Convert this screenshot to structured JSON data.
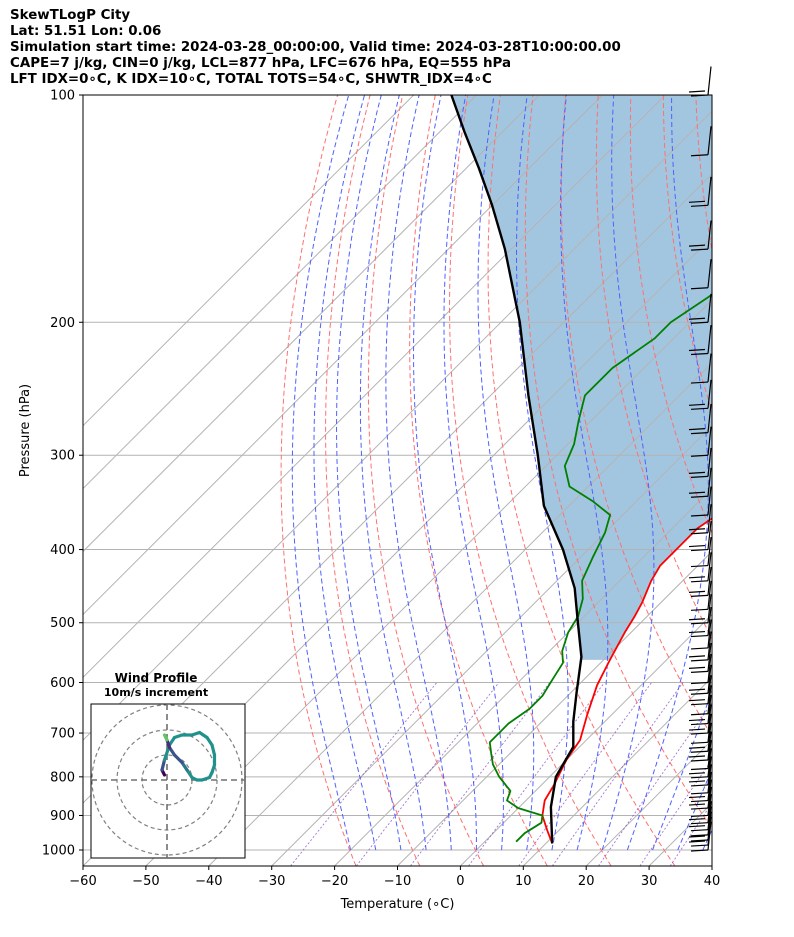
{
  "header": {
    "title": "SkewTLogP City",
    "location": "Lat: 51.51   Lon: 0.06",
    "times": "Simulation start time: 2024-03-28_00:00:00, Valid time: 2024-03-28T10:00:00.00",
    "indices_1": "CAPE=7 j/kg, CIN=0 j/kg, LCL=877 hPa, LFC=676 hPa, EQ=555 hPa",
    "indices_2": "LFT IDX=0∘C, K IDX=10∘C, TOTAL TOTS=54∘C, SHWTR_IDX=4∘C"
  },
  "chart_data": {
    "type": "line",
    "xlabel": "Temperature (∘C)",
    "ylabel": "Pressure (hPa)",
    "xlim": [
      -60,
      40
    ],
    "ylim": [
      1050,
      100
    ],
    "y_scale": "log",
    "x_ticks": [
      -60,
      -50,
      -40,
      -30,
      -20,
      -10,
      0,
      10,
      20,
      30,
      40
    ],
    "x_tick_labels": [
      "−60",
      "−50",
      "−40",
      "−30",
      "−20",
      "−10",
      "0",
      "10",
      "20",
      "30",
      "40"
    ],
    "y_ticks": [
      1000,
      900,
      800,
      700,
      600,
      500,
      400,
      300,
      200,
      100
    ],
    "y_tick_labels": [
      "1000",
      "900",
      "800",
      "700",
      "600",
      "500",
      "400",
      "300",
      "200",
      "100"
    ],
    "skew": "isotherms tilted 45°",
    "series": [
      {
        "key": "temperature",
        "color": "#ff0000",
        "points": [
          [
            11,
            980
          ],
          [
            8,
            940
          ],
          [
            5,
            900
          ],
          [
            3,
            860
          ],
          [
            2,
            820
          ],
          [
            0,
            760
          ],
          [
            -1,
            715
          ],
          [
            -4,
            660
          ],
          [
            -7,
            605
          ],
          [
            -9,
            560
          ],
          [
            -11,
            515
          ],
          [
            -12,
            490
          ],
          [
            -13,
            470
          ],
          [
            -15,
            440
          ],
          [
            -16,
            420
          ],
          [
            -16,
            400
          ],
          [
            -16,
            375
          ],
          [
            -15,
            360
          ],
          [
            -13,
            345
          ],
          [
            -10,
            330
          ],
          [
            -6,
            310
          ],
          [
            -3,
            290
          ],
          [
            1,
            270
          ],
          [
            5,
            250
          ],
          [
            8,
            230
          ],
          [
            10,
            205
          ],
          [
            11,
            185
          ],
          [
            14,
            170
          ],
          [
            17,
            150
          ],
          [
            18,
            135
          ],
          [
            19,
            125
          ],
          [
            20,
            110
          ],
          [
            21,
            100
          ]
        ]
      },
      {
        "key": "dewpoint",
        "color": "#008000",
        "points": [
          [
            5,
            975
          ],
          [
            5,
            950
          ],
          [
            6,
            920
          ],
          [
            5,
            900
          ],
          [
            0,
            880
          ],
          [
            -3,
            860
          ],
          [
            -4,
            835
          ],
          [
            -8,
            800
          ],
          [
            -11,
            770
          ],
          [
            -13,
            745
          ],
          [
            -15,
            720
          ],
          [
            -15,
            700
          ],
          [
            -15,
            680
          ],
          [
            -14,
            650
          ],
          [
            -14,
            625
          ],
          [
            -15,
            595
          ],
          [
            -16,
            565
          ],
          [
            -18,
            545
          ],
          [
            -20,
            515
          ],
          [
            -21,
            490
          ],
          [
            -23,
            465
          ],
          [
            -26,
            440
          ],
          [
            -28,
            410
          ],
          [
            -30,
            380
          ],
          [
            -32,
            360
          ],
          [
            -37,
            345
          ],
          [
            -43,
            330
          ],
          [
            -47,
            310
          ],
          [
            -49,
            290
          ],
          [
            -52,
            270
          ],
          [
            -55,
            250
          ],
          [
            -55,
            230
          ],
          [
            -53,
            210
          ],
          [
            -53,
            200
          ],
          [
            -51,
            185
          ],
          [
            -48,
            170
          ],
          [
            -44,
            150
          ],
          [
            -41,
            135
          ],
          [
            -38,
            120
          ],
          [
            -34,
            108
          ],
          [
            -32,
            100
          ]
        ]
      },
      {
        "key": "parcel",
        "color": "#000000",
        "points": [
          [
            11,
            980
          ],
          [
            5,
            877
          ],
          [
            1,
            800
          ],
          [
            -1,
            730
          ],
          [
            -5,
            676
          ],
          [
            -9,
            620
          ],
          [
            -14,
            555
          ],
          [
            -20,
            500
          ],
          [
            -26,
            450
          ],
          [
            -34,
            400
          ],
          [
            -44,
            350
          ],
          [
            -53,
            300
          ],
          [
            -64,
            250
          ],
          [
            -77,
            200
          ],
          [
            -91,
            160
          ],
          [
            -100,
            140
          ],
          [
            -108,
            125
          ],
          [
            -116,
            112
          ],
          [
            -124,
            100
          ]
        ]
      }
    ],
    "dry_adiabats_theta_K": [
      253,
      263,
      273,
      283,
      293,
      303,
      313,
      323,
      333,
      343,
      353,
      363,
      373,
      383,
      393,
      403,
      413,
      423,
      433,
      443,
      453
    ],
    "moist_adiabats_start_C": [
      -20,
      -16,
      -12,
      -8,
      -4,
      0,
      4,
      8,
      12,
      16,
      20,
      24,
      28,
      32,
      36
    ],
    "isotherms_C": [
      -130,
      -120,
      -110,
      -100,
      -90,
      -80,
      -70,
      -60,
      -50,
      -40,
      -30,
      -20,
      -10,
      0,
      10,
      20,
      30,
      40
    ],
    "mixing_ratio_g_per_kg": [
      0.4,
      1,
      2,
      4,
      7,
      10,
      16,
      24,
      32
    ],
    "wind_barbs": {
      "pressures": [
        1000,
        985,
        970,
        955,
        940,
        920,
        900,
        880,
        860,
        840,
        820,
        800,
        780,
        760,
        740,
        720,
        700,
        680,
        660,
        640,
        620,
        600,
        580,
        560,
        540,
        520,
        500,
        480,
        460,
        440,
        420,
        400,
        380,
        360,
        340,
        320,
        300,
        280,
        260,
        240,
        220,
        200,
        180,
        160,
        140,
        120,
        100
      ],
      "note": "barbs drawn along right edge"
    },
    "inset": {
      "title": "Wind Profile",
      "subtitle": "10m/s increment",
      "rings_ms": [
        10,
        20,
        30
      ],
      "hodograph": [
        [
          -1,
          2
        ],
        [
          -2,
          4
        ],
        [
          -1,
          8
        ],
        [
          1,
          14
        ],
        [
          3,
          17
        ],
        [
          6,
          18
        ],
        [
          10,
          18
        ],
        [
          13,
          19
        ],
        [
          16,
          17
        ],
        [
          18,
          14
        ],
        [
          19,
          10
        ],
        [
          19,
          6
        ],
        [
          18,
          3
        ],
        [
          17,
          1
        ],
        [
          14,
          0
        ],
        [
          12,
          0
        ],
        [
          10,
          1
        ],
        [
          8,
          4
        ],
        [
          6,
          7
        ],
        [
          3,
          10
        ],
        [
          1,
          13
        ],
        [
          0,
          16
        ],
        [
          -1,
          18
        ]
      ]
    }
  }
}
